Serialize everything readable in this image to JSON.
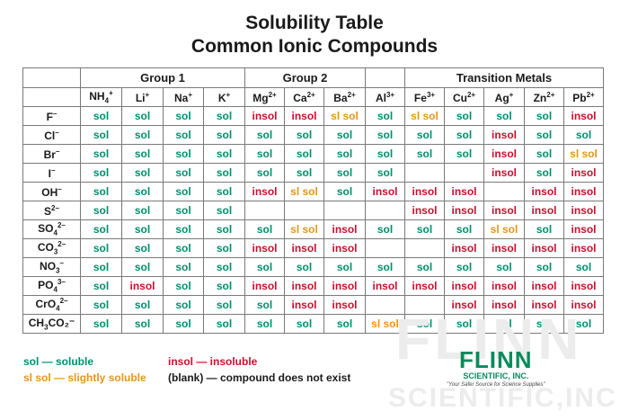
{
  "title": {
    "line1": "Solubility Table",
    "line2": "Common Ionic Compounds"
  },
  "groups": [
    {
      "label": "",
      "span": 1
    },
    {
      "label": "Group 1",
      "span": 4
    },
    {
      "label": "Group 2",
      "span": 3
    },
    {
      "label": "",
      "span": 1
    },
    {
      "label": "Transition Metals",
      "span": 5
    }
  ],
  "cations": [
    {
      "base": "NH",
      "sub": "4",
      "sup": "+"
    },
    {
      "base": "Li",
      "sub": "",
      "sup": "+"
    },
    {
      "base": "Na",
      "sub": "",
      "sup": "+"
    },
    {
      "base": "K",
      "sub": "",
      "sup": "+"
    },
    {
      "base": "Mg",
      "sub": "",
      "sup": "2+"
    },
    {
      "base": "Ca",
      "sub": "",
      "sup": "2+"
    },
    {
      "base": "Ba",
      "sub": "",
      "sup": "2+"
    },
    {
      "base": "Al",
      "sub": "",
      "sup": "3+"
    },
    {
      "base": "Fe",
      "sub": "",
      "sup": "3+"
    },
    {
      "base": "Cu",
      "sub": "",
      "sup": "2+"
    },
    {
      "base": "Ag",
      "sub": "",
      "sup": "+"
    },
    {
      "base": "Zn",
      "sub": "",
      "sup": "2+"
    },
    {
      "base": "Pb",
      "sub": "",
      "sup": "2+"
    }
  ],
  "rows": [
    {
      "anion": {
        "base": "F",
        "sub": "",
        "sup": "–",
        "tail": ""
      },
      "cells": [
        "sol",
        "sol",
        "sol",
        "sol",
        "insol",
        "insol",
        "sl sol",
        "sol",
        "sl sol",
        "sol",
        "sol",
        "sol",
        "insol"
      ]
    },
    {
      "anion": {
        "base": "Cl",
        "sub": "",
        "sup": "–",
        "tail": ""
      },
      "cells": [
        "sol",
        "sol",
        "sol",
        "sol",
        "sol",
        "sol",
        "sol",
        "sol",
        "sol",
        "sol",
        "insol",
        "sol",
        "sol"
      ]
    },
    {
      "anion": {
        "base": "Br",
        "sub": "",
        "sup": "–",
        "tail": ""
      },
      "cells": [
        "sol",
        "sol",
        "sol",
        "sol",
        "sol",
        "sol",
        "sol",
        "sol",
        "sol",
        "sol",
        "insol",
        "sol",
        "sl sol"
      ]
    },
    {
      "anion": {
        "base": "I",
        "sub": "",
        "sup": "–",
        "tail": ""
      },
      "cells": [
        "sol",
        "sol",
        "sol",
        "sol",
        "sol",
        "sol",
        "sol",
        "sol",
        "",
        "",
        "insol",
        "sol",
        "insol"
      ]
    },
    {
      "anion": {
        "base": "OH",
        "sub": "",
        "sup": "–",
        "tail": ""
      },
      "cells": [
        "sol",
        "sol",
        "sol",
        "sol",
        "insol",
        "sl sol",
        "sol",
        "insol",
        "insol",
        "insol",
        "",
        "insol",
        "insol"
      ]
    },
    {
      "anion": {
        "base": "S",
        "sub": "",
        "sup": "2–",
        "tail": ""
      },
      "cells": [
        "sol",
        "sol",
        "sol",
        "sol",
        "",
        "",
        "",
        "",
        "insol",
        "insol",
        "insol",
        "insol",
        "insol"
      ]
    },
    {
      "anion": {
        "base": "SO",
        "sub": "4",
        "sup": "2–",
        "tail": ""
      },
      "cells": [
        "sol",
        "sol",
        "sol",
        "sol",
        "sol",
        "sl sol",
        "insol",
        "sol",
        "sol",
        "sol",
        "sl sol",
        "sol",
        "insol"
      ]
    },
    {
      "anion": {
        "base": "CO",
        "sub": "3",
        "sup": "2–",
        "tail": ""
      },
      "cells": [
        "sol",
        "sol",
        "sol",
        "sol",
        "insol",
        "insol",
        "insol",
        "",
        "",
        "insol",
        "insol",
        "insol",
        "insol"
      ]
    },
    {
      "anion": {
        "base": "NO",
        "sub": "3",
        "sup": "–",
        "tail": ""
      },
      "cells": [
        "sol",
        "sol",
        "sol",
        "sol",
        "sol",
        "sol",
        "sol",
        "sol",
        "sol",
        "sol",
        "sol",
        "sol",
        "sol"
      ]
    },
    {
      "anion": {
        "base": "PO",
        "sub": "4",
        "sup": "3–",
        "tail": ""
      },
      "cells": [
        "sol",
        "insol",
        "sol",
        "sol",
        "insol",
        "insol",
        "insol",
        "insol",
        "insol",
        "insol",
        "insol",
        "insol",
        "insol"
      ]
    },
    {
      "anion": {
        "base": "CrO",
        "sub": "4",
        "sup": "2–",
        "tail": ""
      },
      "cells": [
        "sol",
        "sol",
        "sol",
        "sol",
        "sol",
        "insol",
        "insol",
        "",
        "",
        "insol",
        "insol",
        "insol",
        "insol"
      ]
    },
    {
      "anion": {
        "base": "CH",
        "sub": "3",
        "sup": "",
        "tail": "CO₂⁻"
      },
      "cells": [
        "sol",
        "sol",
        "sol",
        "sol",
        "sol",
        "sol",
        "sol",
        "sl sol",
        "sol",
        "sol",
        "sol",
        "sol",
        "sol"
      ]
    }
  ],
  "legend": {
    "sol": "sol — soluble",
    "insol": "insol — insoluble",
    "slsol": "sl sol — slightly soluble",
    "blank": "(blank) — compound does not exist"
  },
  "logo": {
    "name": "FLINN",
    "sub": "SCIENTIFIC, INC.",
    "tagline": "\"Your Safer Source for Science Supplies\""
  },
  "watermark": {
    "big": "FLINN",
    "bottom": "SCIENTIFIC,INC"
  },
  "colors": {
    "sol": "#008f6e",
    "insol": "#c8102e",
    "slsol": "#e8951c"
  }
}
